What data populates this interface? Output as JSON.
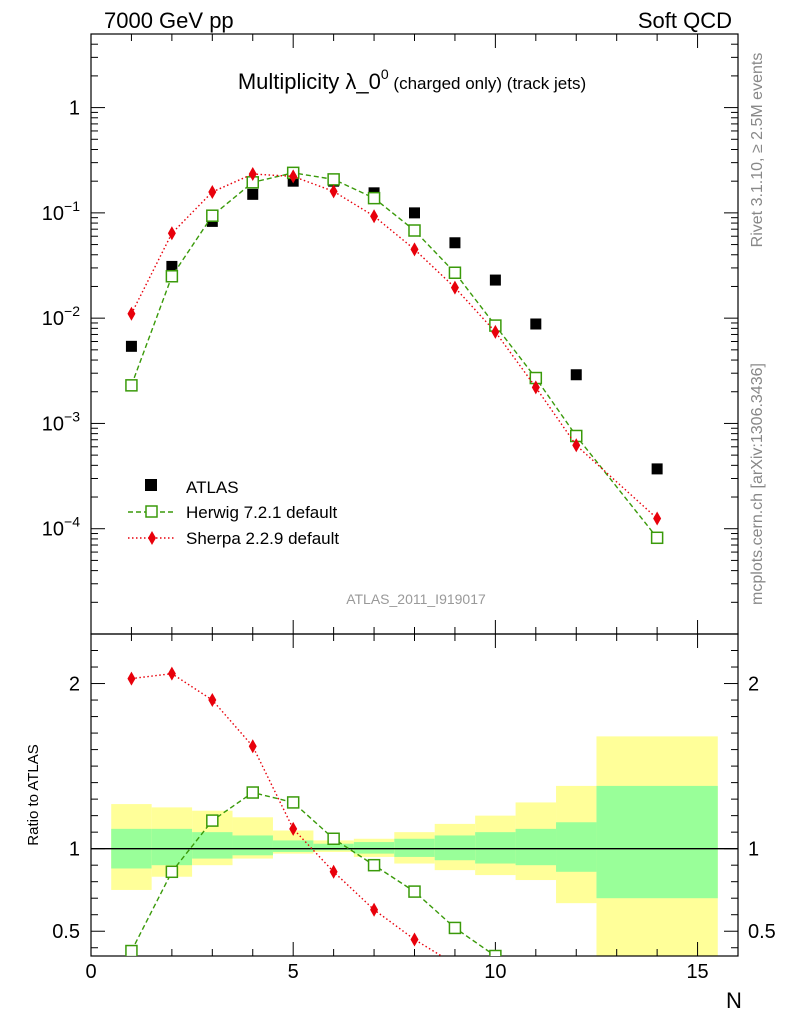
{
  "header": {
    "left": "7000 GeV pp",
    "right": "Soft QCD"
  },
  "title": {
    "main": "Multiplicity λ_0",
    "sup": "0",
    "suffix": " (charged only) (track jets)"
  },
  "side_labels": {
    "rivet": "Rivet 3.1.10, ≥ 2.5M events",
    "mcplots": "mcplots.cern.ch [arXiv:1306.3436]"
  },
  "watermark": "ATLAS_2011_I919017",
  "chart_data": {
    "type": "scatter",
    "xlabel": "N",
    "ratio_ylabel": "Ratio to ATLAS",
    "xlim": [
      0,
      16
    ],
    "ylim_main": [
      1e-05,
      5
    ],
    "yscale_main": "log",
    "ylim_ratio": [
      0.35,
      2.3
    ],
    "x_ticks": [
      "0",
      "5",
      "10",
      "15"
    ],
    "y_ticks_main": [
      {
        "mant": "10",
        "exp": "−4",
        "v": 0.0001
      },
      {
        "mant": "10",
        "exp": "−3",
        "v": 0.001
      },
      {
        "mant": "10",
        "exp": "−2",
        "v": 0.01
      },
      {
        "mant": "10",
        "exp": "−1",
        "v": 0.1
      },
      {
        "mant": "1",
        "exp": "",
        "v": 1
      }
    ],
    "y_ticks_ratio": [
      "0.5",
      "1",
      "2"
    ],
    "legend_position": "bottom-left",
    "series": [
      {
        "name": "ATLAS",
        "color": "#000000",
        "marker": "square-filled",
        "x": [
          1,
          2,
          3,
          4,
          5,
          6,
          7,
          8,
          9,
          10,
          11,
          12,
          14
        ],
        "y": [
          0.0054,
          0.031,
          0.083,
          0.15,
          0.2,
          0.2,
          0.155,
          0.1,
          0.052,
          0.023,
          0.0088,
          0.0029,
          0.00037
        ]
      },
      {
        "name": "Herwig 7.2.1 default",
        "color": "#3a9a0a",
        "marker": "square-open",
        "line": "dashed",
        "x": [
          1,
          2,
          3,
          4,
          5,
          6,
          7,
          8,
          9,
          10,
          11,
          12,
          14
        ],
        "y": [
          0.0023,
          0.025,
          0.094,
          0.195,
          0.24,
          0.208,
          0.138,
          0.068,
          0.027,
          0.0085,
          0.0027,
          0.00076,
          8.2e-05
        ]
      },
      {
        "name": "Sherpa 2.2.9 default",
        "color": "#e8000b",
        "marker": "diamond-filled",
        "line": "dotted",
        "x": [
          1,
          2,
          3,
          4,
          5,
          6,
          7,
          8,
          9,
          10,
          11,
          12,
          14
        ],
        "y": [
          0.011,
          0.064,
          0.158,
          0.234,
          0.222,
          0.16,
          0.093,
          0.045,
          0.0195,
          0.0074,
          0.0022,
          0.00062,
          0.000125
        ]
      }
    ],
    "ratio_series": [
      {
        "name": "Herwig 7.2.1 default",
        "color": "#3a9a0a",
        "x": [
          1,
          2,
          3,
          4,
          5,
          6,
          7,
          8,
          9,
          10
        ],
        "y": [
          0.38,
          0.86,
          1.17,
          1.34,
          1.28,
          1.06,
          0.9,
          0.74,
          0.52,
          0.35
        ]
      },
      {
        "name": "Sherpa 2.2.9 default",
        "color": "#e8000b",
        "x": [
          1,
          2,
          3,
          4,
          5,
          6,
          7,
          8,
          9
        ],
        "y": [
          2.03,
          2.06,
          1.9,
          1.62,
          1.12,
          0.86,
          0.63,
          0.45,
          0.3
        ]
      }
    ],
    "uncertainty_bands": {
      "bins": [
        [
          0.5,
          1.5
        ],
        [
          1.5,
          2.5
        ],
        [
          2.5,
          3.5
        ],
        [
          3.5,
          4.5
        ],
        [
          4.5,
          5.5
        ],
        [
          5.5,
          6.5
        ],
        [
          6.5,
          7.5
        ],
        [
          7.5,
          8.5
        ],
        [
          8.5,
          9.5
        ],
        [
          9.5,
          10.5
        ],
        [
          10.5,
          11.5
        ],
        [
          11.5,
          12.5
        ],
        [
          12.5,
          15.5
        ]
      ],
      "outer_low": [
        0.75,
        0.83,
        0.9,
        0.94,
        0.97,
        0.98,
        0.95,
        0.91,
        0.87,
        0.84,
        0.81,
        0.67,
        0.2
      ],
      "outer_high": [
        1.27,
        1.25,
        1.23,
        1.19,
        1.11,
        1.05,
        1.06,
        1.1,
        1.15,
        1.2,
        1.28,
        1.38,
        1.68
      ],
      "inner_low": [
        0.88,
        0.9,
        0.94,
        0.96,
        0.98,
        0.99,
        0.97,
        0.95,
        0.93,
        0.91,
        0.9,
        0.86,
        0.7
      ],
      "inner_high": [
        1.12,
        1.12,
        1.1,
        1.08,
        1.05,
        1.03,
        1.04,
        1.06,
        1.08,
        1.1,
        1.12,
        1.16,
        1.38
      ],
      "colors": {
        "outer": "#ffff99",
        "inner": "#99ff99"
      }
    }
  }
}
